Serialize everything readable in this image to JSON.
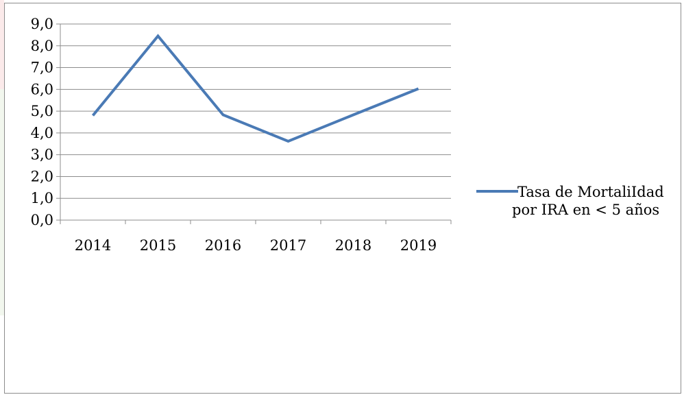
{
  "chart_data": {
    "type": "line",
    "categories": [
      "2014",
      "2015",
      "2016",
      "2017",
      "2018",
      "2019"
    ],
    "series": [
      {
        "name": "Tasa de MortaliIdad por IRA en < 5 años",
        "values": [
          4.8,
          8.45,
          4.83,
          3.62,
          4.83,
          6.03
        ],
        "color": "#4a7ab5"
      }
    ],
    "ylim": [
      0,
      9
    ],
    "ytick_values": [
      0,
      1,
      2,
      3,
      4,
      5,
      6,
      7,
      8,
      9
    ],
    "ytick_labels": [
      "0,0",
      "1,0",
      "2,0",
      "3,0",
      "4,0",
      "5,0",
      "6,0",
      "7,0",
      "8,0",
      "9,0"
    ],
    "grid": true,
    "legend_position": "right",
    "legend": {
      "line1": "Tasa de MortaliIdad",
      "line2": "por IRA en < 5 años"
    },
    "colors": {
      "grid": "#8c8c8c",
      "axis": "#8c8c8c",
      "series": "#4a7ab5"
    }
  }
}
